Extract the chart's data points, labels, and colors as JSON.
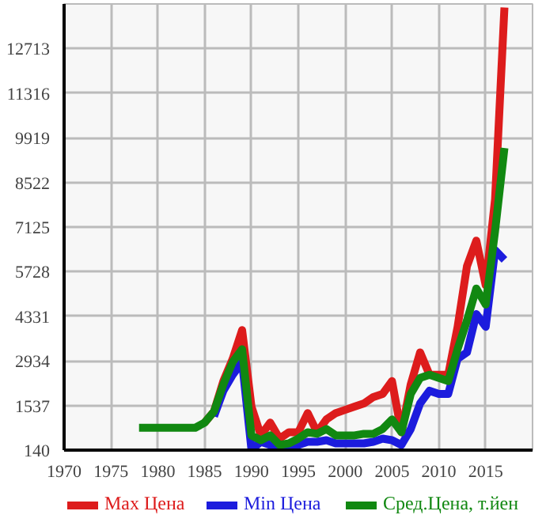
{
  "chart_data": {
    "type": "line",
    "xlim": [
      1970,
      2020
    ],
    "xticks": [
      1970,
      1975,
      1980,
      1985,
      1990,
      1995,
      2000,
      2005,
      2010,
      2015
    ],
    "ylim": [
      140,
      14110
    ],
    "yticks": [
      140,
      1537,
      2934,
      4331,
      5728,
      7125,
      8522,
      9919,
      11316,
      12713
    ],
    "grid": true,
    "legend": "bottom",
    "line_style": "solid",
    "series": [
      {
        "name": "Max Цена",
        "color": "#dd1c1c",
        "x": [
          1985,
          1986,
          1987,
          1988,
          1989,
          1990,
          1991,
          1992,
          1993,
          1994,
          1995,
          1996,
          1997,
          1998,
          1999,
          2000,
          2001,
          2002,
          2003,
          2004,
          2005,
          2006,
          2007,
          2008,
          2009,
          2010,
          2011,
          2012,
          2013,
          2014,
          2015,
          2016,
          2017
        ],
        "values": [
          1000,
          1350,
          2300,
          3000,
          3900,
          1500,
          600,
          1000,
          500,
          700,
          700,
          1300,
          700,
          1100,
          1300,
          1400,
          1500,
          1600,
          1800,
          1900,
          2300,
          700,
          2200,
          3200,
          2500,
          2500,
          2500,
          4000,
          5900,
          6700,
          5300,
          8000,
          14000
        ]
      },
      {
        "name": "Min Цена",
        "color": "#1c1cdd",
        "x": [
          1986,
          1987,
          1988,
          1989,
          1990,
          1991,
          1992,
          1993,
          1994,
          1995,
          1996,
          1997,
          1998,
          1999,
          2000,
          2001,
          2002,
          2003,
          2004,
          2005,
          2006,
          2007,
          2008,
          2009,
          2010,
          2011,
          2012,
          2013,
          2014,
          2015,
          2016,
          2017
        ],
        "values": [
          1200,
          2000,
          2500,
          2900,
          150,
          400,
          300,
          150,
          200,
          300,
          400,
          400,
          450,
          350,
          350,
          350,
          350,
          400,
          500,
          450,
          300,
          800,
          1600,
          2000,
          1900,
          1900,
          3000,
          3200,
          4400,
          4000,
          6400,
          6100
        ]
      },
      {
        "name": "Сред.Цена, т.йен",
        "color": "#118811",
        "x": [
          1978,
          1979,
          1980,
          1981,
          1982,
          1983,
          1984,
          1985,
          1986,
          1987,
          1988,
          1989,
          1990,
          1991,
          1992,
          1993,
          1994,
          1995,
          1996,
          1997,
          1998,
          1999,
          2000,
          2001,
          2002,
          2003,
          2004,
          2005,
          2006,
          2007,
          2008,
          2009,
          2010,
          2011,
          2012,
          2013,
          2014,
          2015,
          2016,
          2017
        ],
        "values": [
          840,
          840,
          840,
          840,
          840,
          840,
          840,
          1000,
          1350,
          2200,
          2900,
          3300,
          600,
          450,
          600,
          300,
          350,
          500,
          700,
          650,
          800,
          600,
          600,
          600,
          650,
          650,
          800,
          1100,
          700,
          1900,
          2400,
          2500,
          2400,
          2300,
          3300,
          4200,
          5200,
          4700,
          7000,
          9600
        ]
      }
    ]
  }
}
